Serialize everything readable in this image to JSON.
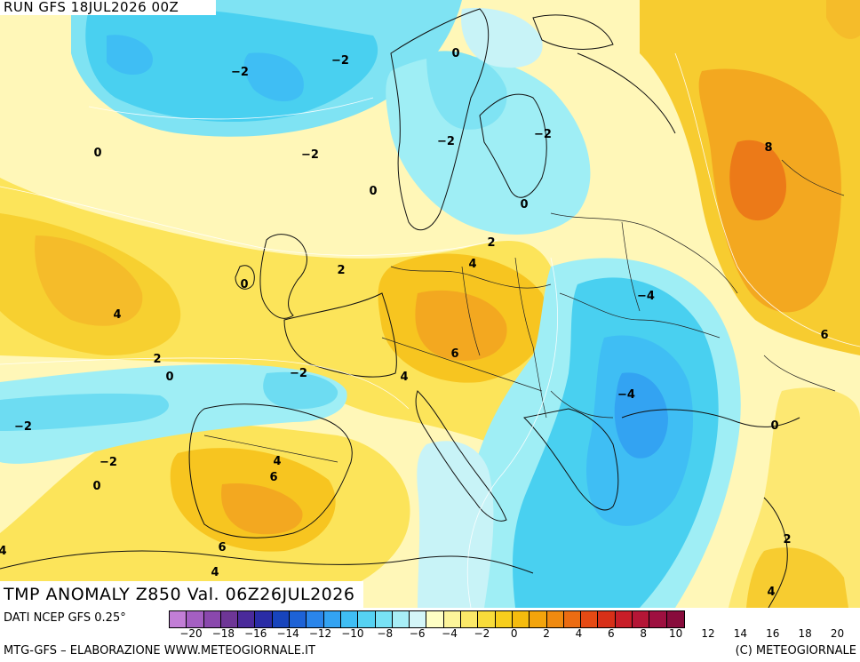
{
  "header": {
    "run_label": "RUN GFS 18JUL2026 00Z"
  },
  "title": {
    "text": "TMP ANOMALY Z850 Val. 06Z26JUL2026"
  },
  "footer": {
    "source": "DATI NCEP GFS 0.25°",
    "credit_left": "MTG-GFS – ELABORAZIONE WWW.METEOGIORNALE.IT",
    "credit_right": "(C) METEOGIORNALE"
  },
  "colorbar": {
    "colors": [
      "#c27ed6",
      "#a45fc2",
      "#8a48ad",
      "#6e3696",
      "#4a2a9a",
      "#2a2ca6",
      "#1744bc",
      "#1d62d6",
      "#2a85ea",
      "#33a3f2",
      "#3fbef4",
      "#55d2f2",
      "#78e2f5",
      "#a8eef6",
      "#d4f6f8",
      "#ffffc4",
      "#fdf59a",
      "#fbe968",
      "#f8dc3a",
      "#f7ce1c",
      "#f5bc0e",
      "#f3a40c",
      "#f08a10",
      "#ec6c12",
      "#e54a14",
      "#d83018",
      "#c81e28",
      "#b51636",
      "#9e1040",
      "#880c3c"
    ],
    "tick_labels": [
      "−20",
      "−18",
      "−16",
      "−14",
      "−12",
      "−10",
      "−8",
      "−6",
      "−4",
      "−2",
      "0",
      "2",
      "4",
      "6",
      "8",
      "10",
      "12",
      "14",
      "16",
      "18",
      "20"
    ]
  },
  "contour_labels": [
    {
      "text": "−2"
    },
    {
      "text": "−2"
    },
    {
      "text": "0"
    },
    {
      "text": "0"
    },
    {
      "text": "−2"
    },
    {
      "text": "−2"
    },
    {
      "text": "−2"
    },
    {
      "text": "0"
    },
    {
      "text": "0"
    },
    {
      "text": "8"
    },
    {
      "text": "2"
    },
    {
      "text": "4"
    },
    {
      "text": "0"
    },
    {
      "text": "2"
    },
    {
      "text": "4"
    },
    {
      "text": "−4"
    },
    {
      "text": "6"
    },
    {
      "text": "6"
    },
    {
      "text": "2"
    },
    {
      "text": "0"
    },
    {
      "text": "−2"
    },
    {
      "text": "4"
    },
    {
      "text": "−4"
    },
    {
      "text": "−2"
    },
    {
      "text": "0"
    },
    {
      "text": "−2"
    },
    {
      "text": "4"
    },
    {
      "text": "6"
    },
    {
      "text": "0"
    },
    {
      "text": "6"
    },
    {
      "text": "4"
    },
    {
      "text": "4"
    },
    {
      "text": "2"
    },
    {
      "text": "4"
    }
  ]
}
